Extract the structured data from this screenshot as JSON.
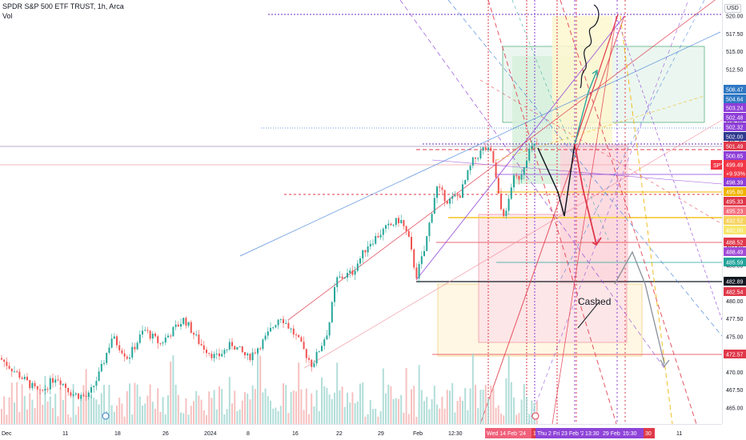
{
  "header": {
    "title": "SPDR S&P 500 ETF TRUST, 1h, Arca",
    "sub": "Vol"
  },
  "currency": "USD",
  "annotation": "Cashed",
  "chart_data": {
    "type": "candlestick",
    "ylim": [
      463.5,
      523.5
    ],
    "yticks": [
      465,
      467.5,
      470,
      472.5,
      475,
      477.5,
      480,
      482.5,
      485,
      487.5,
      490,
      492.5,
      495,
      497.5,
      500,
      502.5,
      505,
      507.5,
      510,
      512.5,
      515,
      517.5,
      520
    ],
    "x_tick_labels": [
      "Dec",
      "11",
      "18",
      "26",
      "2024",
      "8",
      "16",
      "22",
      "29",
      "Feb",
      "12:30",
      "11"
    ],
    "price_tags": [
      {
        "value": "508.47",
        "color": "#2f78c4"
      },
      {
        "value": "504.64",
        "color": "#2f78c4"
      },
      {
        "value": "503.24",
        "color": "#8e3ed8"
      },
      {
        "value": "502.48",
        "color": "#8e3ed8"
      },
      {
        "value": "502.32",
        "color": "#8e3ed8"
      },
      {
        "value": "502.00",
        "color": "#2f3a8f"
      },
      {
        "value": "501.49",
        "color": "#e0384a"
      },
      {
        "value": "500.85",
        "color": "#8e3ed8"
      },
      {
        "value": "499.49",
        "color": "#f23645"
      },
      {
        "value": "+9.93%",
        "color": "#f23645"
      },
      {
        "value": "498.39",
        "color": "#8e3ed8"
      },
      {
        "value": "495.80",
        "color": "#f0b400"
      },
      {
        "value": "495.33",
        "color": "#e0384a"
      },
      {
        "value": "495.23",
        "color": "#f56f7c"
      },
      {
        "value": "492.52",
        "color": "#f7d25c"
      },
      {
        "value": "492.00",
        "color": "#f7e66a"
      },
      {
        "value": "488.52",
        "color": "#e0384a"
      },
      {
        "value": "488.49",
        "color": "#a24bd6"
      },
      {
        "value": "485.59",
        "color": "#22a39a"
      },
      {
        "value": "482.89",
        "color": "#131722"
      },
      {
        "value": "482.54",
        "color": "#e0384a"
      },
      {
        "value": "472.57",
        "color": "#e0384a"
      }
    ],
    "ticker_label": "SPY",
    "date_tags": [
      {
        "label": "Wed 14 Feb '24",
        "color": "#f0607a"
      },
      {
        "label": "1",
        "color": "#e03a48"
      },
      {
        "label": "Thu 2",
        "color": "#8e44d8"
      },
      {
        "label": "Fri 23 Feb '24",
        "color": "#8e44d8"
      },
      {
        "label": "13:30",
        "color": "#8e44d8"
      },
      {
        "label": "29 Feb '24",
        "color": "#8e44d8"
      },
      {
        "label": "15:30",
        "color": "#8e44d8"
      },
      {
        "label": "30",
        "color": "#e03a48"
      }
    ]
  }
}
